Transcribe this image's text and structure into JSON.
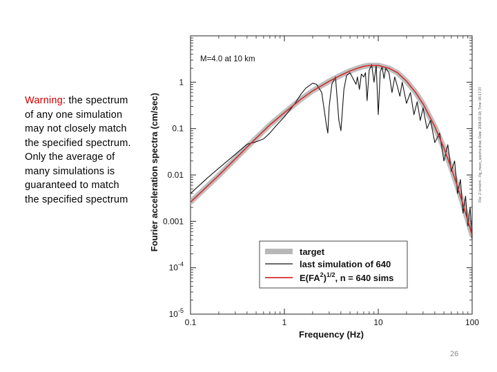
{
  "note": {
    "warning_label": "Warning",
    "text": ":  the spectrum of any one simulation may not closely match the specified spectrum. Only the average of many simulations is guaranteed to match the specified spectrum"
  },
  "slide_number": "26",
  "chart_data": {
    "type": "line",
    "title": "",
    "annotation": "M=4.0 at 10 km",
    "xlabel": "Frequency (Hz)",
    "ylabel": "Fourier acceleration spectra (cm/sec)",
    "xscale": "log",
    "yscale": "log",
    "xlim": [
      0.1,
      100
    ],
    "ylim": [
      1e-05,
      10
    ],
    "x_ticks": [
      {
        "value": 0.1,
        "label": "0.1"
      },
      {
        "value": 1,
        "label": "1"
      },
      {
        "value": 10,
        "label": "10"
      },
      {
        "value": 100,
        "label": "100"
      }
    ],
    "y_ticks": [
      {
        "value": 1,
        "label": "1"
      },
      {
        "value": 0.1,
        "label": "0.1"
      },
      {
        "value": 0.01,
        "label": "0.01"
      },
      {
        "value": 0.001,
        "label": "0.001"
      },
      {
        "value": 0.0001,
        "base": "10",
        "exp": "-4"
      },
      {
        "value": 1e-05,
        "base": "10",
        "exp": "-5"
      }
    ],
    "legend": {
      "position": "lower-right",
      "entries": [
        {
          "key": "target",
          "label": "target"
        },
        {
          "key": "sim",
          "label": "last simulation of 640"
        },
        {
          "key": "avg",
          "label_main": "E(FA",
          "label_sup": "2",
          "label_close": ")",
          "label_sup2": "1/2",
          "label_tail": ", n = 640 sims"
        }
      ]
    },
    "side_text": "File: Z:\\smsim\\...\\fig_mean_spectra.draw; Date: 2008-03-18; Time: 06:17:37",
    "series": [
      {
        "name": "target",
        "color": "#b8b8b8",
        "x": [
          0.1,
          0.2,
          0.4,
          0.7,
          1,
          1.5,
          2,
          3,
          4,
          5,
          6,
          7,
          8,
          10,
          13,
          16,
          20,
          25,
          30,
          40,
          50,
          60,
          70,
          80,
          100
        ],
        "y": [
          0.0026,
          0.0098,
          0.04,
          0.12,
          0.22,
          0.43,
          0.65,
          1.05,
          1.42,
          1.75,
          2.0,
          2.2,
          2.3,
          2.3,
          2.0,
          1.6,
          1.05,
          0.6,
          0.34,
          0.11,
          0.038,
          0.014,
          0.0055,
          0.0023,
          0.0005
        ]
      },
      {
        "name": "avg",
        "color": "#d42a2a",
        "x": [
          0.1,
          0.2,
          0.4,
          0.7,
          1,
          1.5,
          2,
          3,
          4,
          5,
          6,
          7,
          8,
          10,
          13,
          16,
          20,
          25,
          30,
          40,
          50,
          60,
          70,
          80,
          100
        ],
        "y": [
          0.0026,
          0.0098,
          0.04,
          0.12,
          0.22,
          0.43,
          0.65,
          1.05,
          1.42,
          1.75,
          2.0,
          2.2,
          2.3,
          2.3,
          2.0,
          1.6,
          1.05,
          0.6,
          0.34,
          0.11,
          0.038,
          0.014,
          0.0055,
          0.0023,
          0.0005
        ]
      },
      {
        "name": "sim",
        "color": "#111111",
        "x": [
          0.1,
          0.15,
          0.2,
          0.3,
          0.4,
          0.5,
          0.6,
          0.7,
          0.8,
          1.0,
          1.3,
          1.5,
          1.7,
          2.0,
          2.2,
          2.5,
          2.8,
          2.9,
          3.0,
          3.2,
          3.5,
          3.8,
          4.0,
          4.3,
          4.6,
          5.0,
          5.5,
          5.8,
          6.0,
          6.3,
          6.6,
          7.0,
          7.3,
          7.6,
          8.0,
          8.5,
          9.0,
          9.5,
          10.0,
          10.5,
          11.0,
          11.5,
          12.0,
          13.0,
          14.0,
          15.0,
          16.0,
          17.0,
          18.0,
          20.0,
          22.0,
          24.0,
          26.0,
          28.0,
          30.0,
          33.0,
          36.0,
          40.0,
          45.0,
          50.0,
          55.0,
          60.0,
          65.0,
          70.0,
          75.0,
          80.0,
          85.0,
          90.0,
          95.0,
          100.0
        ],
        "y": [
          0.004,
          0.0085,
          0.014,
          0.028,
          0.046,
          0.052,
          0.06,
          0.08,
          0.11,
          0.18,
          0.35,
          0.55,
          0.75,
          0.95,
          0.9,
          0.6,
          0.12,
          0.08,
          0.3,
          0.9,
          1.3,
          0.15,
          0.09,
          0.7,
          1.4,
          1.6,
          1.1,
          0.9,
          1.3,
          0.7,
          1.5,
          1.3,
          1.6,
          0.4,
          1.8,
          2.4,
          1.0,
          2.3,
          0.2,
          1.7,
          2.1,
          1.2,
          2.0,
          1.6,
          0.6,
          1.3,
          0.8,
          0.5,
          1.0,
          0.35,
          0.6,
          0.2,
          0.38,
          0.15,
          0.28,
          0.1,
          0.15,
          0.05,
          0.08,
          0.02,
          0.045,
          0.012,
          0.02,
          0.004,
          0.008,
          0.0015,
          0.0035,
          0.0008,
          0.002,
          0.0004
        ]
      }
    ]
  }
}
